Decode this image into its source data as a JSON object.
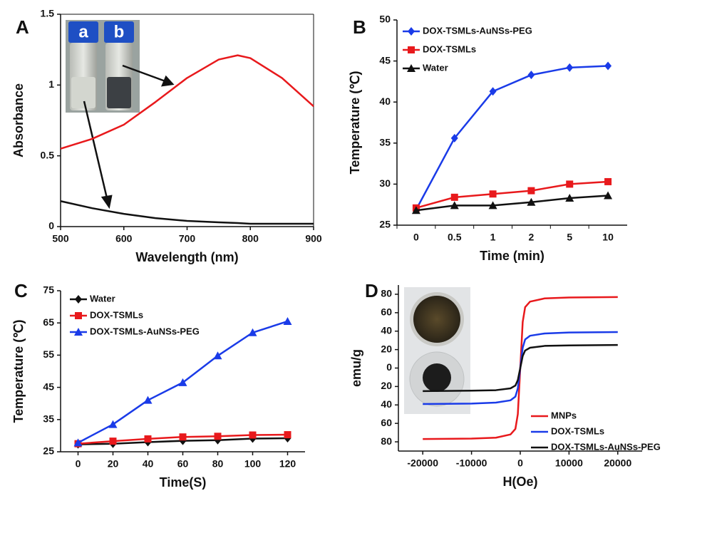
{
  "chart_data": [
    {
      "type": "line",
      "panel_label": "A",
      "annotations": [
        "a",
        "b"
      ],
      "x_label": "Wavelength (nm)",
      "y_label": "Absorbance",
      "x": [
        500,
        550,
        600,
        650,
        700,
        750,
        780,
        800,
        850,
        900
      ],
      "series": [
        {
          "color": "#e8191c",
          "values": [
            0.55,
            0.62,
            0.72,
            0.88,
            1.05,
            1.18,
            1.21,
            1.19,
            1.05,
            0.85
          ]
        },
        {
          "color": "#111111",
          "values": [
            0.18,
            0.13,
            0.09,
            0.06,
            0.04,
            0.03,
            0.025,
            0.02,
            0.02,
            0.02
          ]
        }
      ],
      "xlim": [
        500,
        900
      ],
      "xticks": [
        500,
        600,
        700,
        800,
        900
      ],
      "ylim": [
        0,
        1.5
      ],
      "yticks": [
        0,
        0.5,
        1,
        1.5
      ]
    },
    {
      "type": "line",
      "panel_label": "B",
      "legend": "upper left",
      "x_label": "Time (min)",
      "y_label": "Temperature (℃)",
      "categories": [
        "0",
        "0.5",
        "1",
        "2",
        "5",
        "10"
      ],
      "series": [
        {
          "name": "DOX-TSMLs-AuNSs-PEG",
          "color": "#1a3be8",
          "marker": "diamond",
          "values": [
            26.9,
            35.6,
            41.3,
            43.3,
            44.2,
            44.4
          ]
        },
        {
          "name": "DOX-TSMLs",
          "color": "#e8191c",
          "marker": "square",
          "values": [
            27.1,
            28.4,
            28.8,
            29.2,
            30.0,
            30.3
          ]
        },
        {
          "name": "Water",
          "color": "#111111",
          "marker": "triangle",
          "values": [
            26.8,
            27.4,
            27.4,
            27.8,
            28.3,
            28.6
          ]
        }
      ],
      "ylim": [
        25,
        50
      ],
      "yticks": [
        25,
        30,
        35,
        40,
        45,
        50
      ]
    },
    {
      "type": "line",
      "panel_label": "C",
      "legend": "upper left",
      "x_label": "Time(S)",
      "y_label": "Temperature (℃)",
      "x": [
        0,
        20,
        40,
        60,
        80,
        100,
        120
      ],
      "series": [
        {
          "name": "Water",
          "color": "#111111",
          "marker": "diamond",
          "values": [
            27.3,
            27.5,
            28.0,
            28.4,
            28.6,
            29.1,
            29.2
          ]
        },
        {
          "name": "DOX-TSMLs",
          "color": "#e8191c",
          "marker": "square",
          "values": [
            27.5,
            28.3,
            29.0,
            29.6,
            29.8,
            30.2,
            30.3
          ]
        },
        {
          "name": "DOX-TSMLs-AuNSs-PEG",
          "color": "#1a3be8",
          "marker": "triangle",
          "values": [
            27.8,
            33.5,
            41.0,
            46.5,
            54.8,
            62.0,
            65.5
          ]
        }
      ],
      "xlim": [
        -10,
        130
      ],
      "xticks": [
        0,
        20,
        40,
        60,
        80,
        100,
        120
      ],
      "ylim": [
        25,
        75
      ],
      "yticks": [
        25,
        35,
        45,
        55,
        65,
        75
      ]
    },
    {
      "type": "line",
      "panel_label": "D",
      "legend": "lower right",
      "x_label": "H(Oe)",
      "y_label": "emu/g",
      "x": [
        -20000,
        -10000,
        -5000,
        -2000,
        -1000,
        -500,
        0,
        500,
        1000,
        2000,
        5000,
        10000,
        20000
      ],
      "series": [
        {
          "name": "MNPs",
          "color": "#e8191c",
          "values": [
            -77,
            -76.5,
            -75.5,
            -72,
            -66,
            -50,
            0,
            50,
            66,
            72,
            75.5,
            76.5,
            77
          ]
        },
        {
          "name": "DOX-TSMLs",
          "color": "#1a3be8",
          "values": [
            -39,
            -38.5,
            -37.5,
            -35,
            -31,
            -22,
            0,
            22,
            31,
            35,
            37.5,
            38.5,
            39
          ]
        },
        {
          "name": "DOX-TSMLs-AuNSs-PEG",
          "color": "#111111",
          "values": [
            -25,
            -24.5,
            -24,
            -22,
            -19,
            -13,
            0,
            13,
            19,
            22,
            24,
            24.5,
            25
          ]
        }
      ],
      "xlim": [
        -25000,
        25000
      ],
      "xticks": [
        -20000,
        -10000,
        0,
        10000,
        20000
      ],
      "ylim": [
        -90,
        90
      ],
      "yticks": [
        {
          "value": -80,
          "label": "80"
        },
        {
          "value": -60,
          "label": "60"
        },
        {
          "value": -40,
          "label": "40"
        },
        {
          "value": -20,
          "label": "20"
        },
        0,
        20,
        40,
        60,
        80
      ]
    }
  ]
}
